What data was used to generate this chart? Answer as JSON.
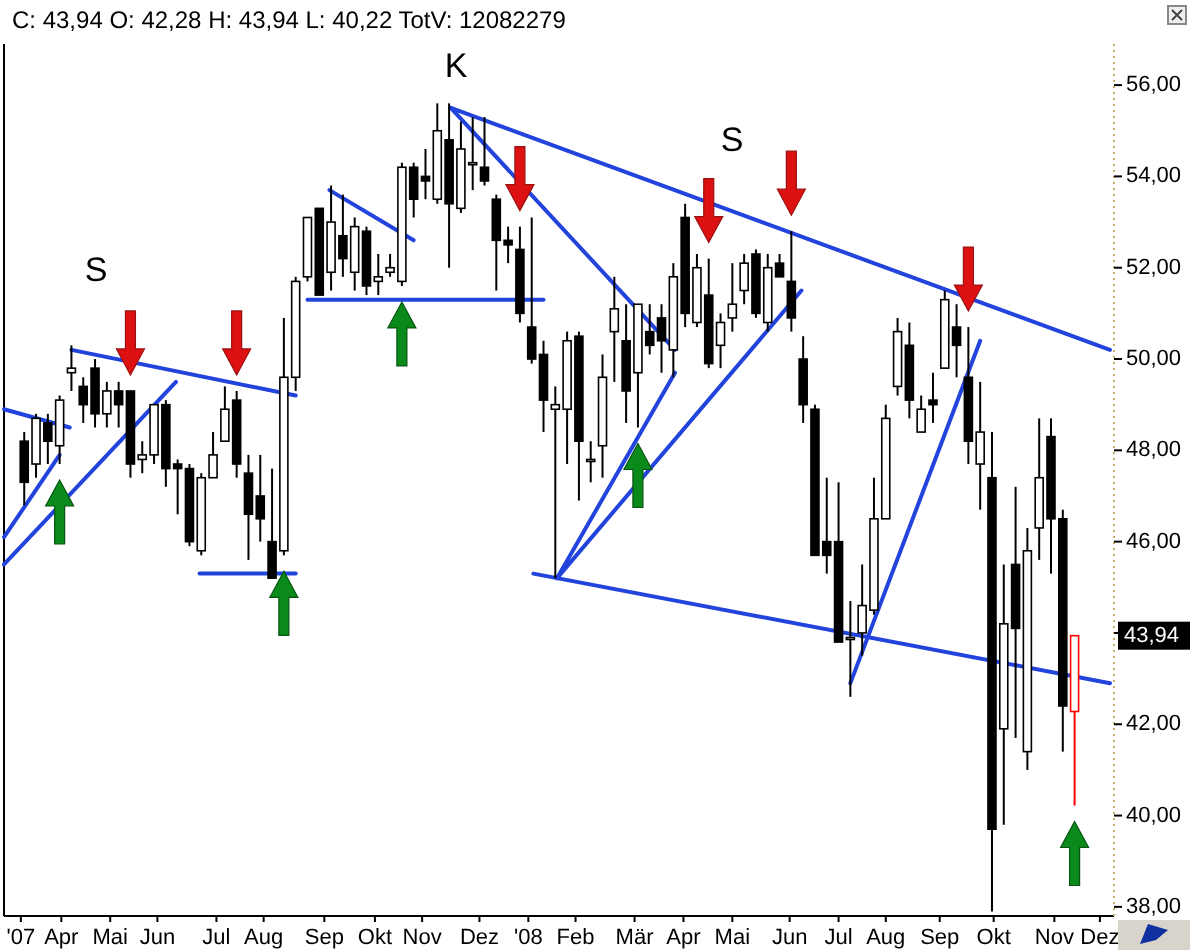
{
  "chart_data": {
    "type": "candlestick",
    "title": "C: 43,94 O: 42,28 H: 43,94 L: 40,22 TotV: 12082279",
    "x": [
      "2007-03-16",
      "2007-03-23",
      "2007-03-30",
      "2007-04-06",
      "2007-04-13",
      "2007-04-20",
      "2007-04-27",
      "2007-05-04",
      "2007-05-11",
      "2007-05-18",
      "2007-05-25",
      "2007-06-01",
      "2007-06-08",
      "2007-06-15",
      "2007-06-22",
      "2007-06-29",
      "2007-07-06",
      "2007-07-13",
      "2007-07-20",
      "2007-07-27",
      "2007-08-03",
      "2007-08-10",
      "2007-08-17",
      "2007-08-24",
      "2007-08-31",
      "2007-09-07",
      "2007-09-14",
      "2007-09-21",
      "2007-09-28",
      "2007-10-05",
      "2007-10-12",
      "2007-10-19",
      "2007-10-26",
      "2007-11-02",
      "2007-11-09",
      "2007-11-16",
      "2007-11-23",
      "2007-11-30",
      "2007-12-07",
      "2007-12-14",
      "2007-12-21",
      "2007-12-28",
      "2008-01-04",
      "2008-01-11",
      "2008-01-18",
      "2008-01-25",
      "2008-02-01",
      "2008-02-08",
      "2008-02-15",
      "2008-02-22",
      "2008-02-29",
      "2008-03-07",
      "2008-03-14",
      "2008-03-21",
      "2008-03-28",
      "2008-04-04",
      "2008-04-11",
      "2008-04-18",
      "2008-04-25",
      "2008-05-02",
      "2008-05-09",
      "2008-05-16",
      "2008-05-23",
      "2008-05-30",
      "2008-06-06",
      "2008-06-13",
      "2008-06-20",
      "2008-06-27",
      "2008-07-04",
      "2008-07-11",
      "2008-07-18",
      "2008-07-25",
      "2008-08-01",
      "2008-08-08",
      "2008-08-15",
      "2008-08-22",
      "2008-08-29",
      "2008-09-05",
      "2008-09-12",
      "2008-09-19",
      "2008-09-26",
      "2008-10-03",
      "2008-10-10",
      "2008-10-17",
      "2008-10-24",
      "2008-10-31",
      "2008-11-07",
      "2008-11-14",
      "2008-11-21",
      "2008-11-28"
    ],
    "ohlc": [
      [
        48.2,
        48.4,
        46.8,
        47.3
      ],
      [
        47.7,
        48.8,
        47.4,
        48.7
      ],
      [
        48.6,
        48.8,
        47.7,
        48.2
      ],
      [
        48.1,
        49.2,
        47.7,
        49.1
      ],
      [
        49.7,
        50.3,
        49.3,
        49.8
      ],
      [
        49.4,
        49.6,
        48.6,
        49.0
      ],
      [
        49.8,
        50.0,
        48.5,
        48.8
      ],
      [
        48.8,
        49.5,
        48.5,
        49.3
      ],
      [
        49.3,
        49.5,
        48.5,
        49.0
      ],
      [
        49.3,
        49.3,
        47.4,
        47.7
      ],
      [
        47.8,
        48.2,
        47.5,
        47.9
      ],
      [
        47.9,
        49.0,
        47.7,
        49.0
      ],
      [
        49.0,
        49.1,
        47.2,
        47.6
      ],
      [
        47.7,
        47.8,
        46.6,
        47.6
      ],
      [
        47.6,
        47.7,
        45.9,
        46.0
      ],
      [
        45.8,
        47.5,
        45.7,
        47.4
      ],
      [
        47.4,
        48.4,
        47.4,
        47.9
      ],
      [
        48.2,
        49.4,
        48.2,
        48.9
      ],
      [
        49.1,
        49.3,
        47.4,
        47.7
      ],
      [
        47.5,
        47.9,
        45.6,
        46.6
      ],
      [
        47.0,
        47.9,
        46.0,
        46.5
      ],
      [
        46.0,
        47.6,
        45.2,
        45.2
      ],
      [
        45.8,
        50.9,
        45.7,
        49.6
      ],
      [
        49.6,
        51.8,
        49.3,
        51.7
      ],
      [
        51.8,
        53.1,
        51.7,
        53.1
      ],
      [
        53.3,
        53.3,
        51.4,
        51.4
      ],
      [
        51.9,
        53.8,
        51.5,
        53.0
      ],
      [
        52.7,
        53.6,
        51.8,
        52.2
      ],
      [
        51.9,
        53.1,
        51.5,
        52.9
      ],
      [
        52.8,
        52.9,
        51.4,
        51.6
      ],
      [
        51.7,
        52.3,
        51.4,
        51.8
      ],
      [
        51.9,
        52.3,
        51.8,
        52.0
      ],
      [
        51.7,
        54.3,
        51.6,
        54.2
      ],
      [
        54.2,
        54.3,
        53.1,
        53.5
      ],
      [
        54.0,
        54.6,
        53.5,
        53.9
      ],
      [
        53.5,
        55.6,
        53.4,
        55.0
      ],
      [
        54.8,
        55.6,
        52.0,
        53.4
      ],
      [
        53.3,
        55.2,
        53.2,
        54.6
      ],
      [
        54.3,
        55.3,
        53.7,
        54.3
      ],
      [
        54.2,
        55.3,
        53.8,
        53.9
      ],
      [
        53.5,
        53.6,
        51.5,
        52.6
      ],
      [
        52.6,
        52.9,
        52.1,
        52.5
      ],
      [
        52.4,
        52.9,
        50.8,
        51.0
      ],
      [
        50.7,
        53.1,
        49.9,
        50.0
      ],
      [
        50.1,
        50.4,
        48.4,
        49.1
      ],
      [
        48.9,
        49.4,
        45.2,
        49.0
      ],
      [
        48.9,
        50.6,
        47.7,
        50.4
      ],
      [
        50.5,
        50.6,
        46.9,
        48.2
      ],
      [
        47.8,
        48.2,
        47.3,
        47.8
      ],
      [
        48.1,
        50.1,
        47.4,
        49.6
      ],
      [
        50.6,
        51.8,
        49.5,
        51.1
      ],
      [
        50.4,
        51.2,
        48.6,
        49.3
      ],
      [
        49.7,
        51.2,
        48.5,
        51.2
      ],
      [
        50.6,
        51.2,
        50.1,
        50.3
      ],
      [
        50.9,
        51.2,
        49.7,
        50.4
      ],
      [
        50.2,
        52.1,
        49.6,
        51.8
      ],
      [
        53.1,
        53.4,
        50.7,
        51.0
      ],
      [
        50.8,
        52.3,
        50.7,
        52.0
      ],
      [
        51.4,
        52.2,
        49.8,
        49.9
      ],
      [
        50.3,
        51.0,
        49.8,
        50.8
      ],
      [
        50.9,
        52.1,
        50.6,
        51.2
      ],
      [
        51.5,
        52.3,
        51.2,
        52.1
      ],
      [
        52.3,
        52.4,
        50.9,
        51.0
      ],
      [
        50.8,
        52.3,
        50.6,
        52.0
      ],
      [
        52.1,
        52.3,
        51.8,
        51.8
      ],
      [
        51.7,
        52.8,
        50.6,
        50.9
      ],
      [
        50.0,
        50.5,
        48.6,
        49.0
      ],
      [
        48.9,
        49.0,
        45.7,
        45.7
      ],
      [
        46.0,
        47.4,
        45.3,
        45.7
      ],
      [
        46.0,
        47.3,
        43.8,
        43.8
      ],
      [
        43.9,
        44.7,
        42.6,
        43.9
      ],
      [
        44.0,
        45.5,
        43.5,
        44.6
      ],
      [
        44.5,
        47.4,
        44.4,
        46.5
      ],
      [
        46.5,
        49.0,
        46.5,
        48.7
      ],
      [
        49.4,
        50.9,
        49.2,
        50.6
      ],
      [
        50.3,
        50.8,
        48.7,
        49.1
      ],
      [
        48.4,
        49.2,
        48.4,
        48.9
      ],
      [
        49.1,
        49.7,
        48.6,
        49.0
      ],
      [
        49.8,
        51.5,
        49.8,
        51.3
      ],
      [
        50.7,
        51.2,
        49.6,
        50.3
      ],
      [
        49.6,
        50.7,
        47.7,
        48.2
      ],
      [
        47.7,
        49.5,
        46.7,
        48.4
      ],
      [
        47.4,
        48.4,
        37.9,
        39.7
      ],
      [
        41.9,
        45.5,
        39.8,
        44.2
      ],
      [
        45.5,
        47.2,
        41.7,
        44.1
      ],
      [
        41.4,
        46.3,
        41.0,
        45.8
      ],
      [
        46.3,
        48.7,
        45.6,
        47.4
      ],
      [
        48.3,
        48.7,
        45.3,
        46.5
      ],
      [
        46.5,
        46.7,
        41.4,
        42.4
      ],
      [
        42.28,
        43.94,
        40.22,
        43.94
      ]
    ],
    "colors": [
      "#000000",
      "#000000",
      "#000000",
      "#000000",
      "#000000",
      "#000000",
      "#000000",
      "#000000",
      "#000000",
      "#000000",
      "#000000",
      "#000000",
      "#000000",
      "#000000",
      "#000000",
      "#000000",
      "#000000",
      "#000000",
      "#000000",
      "#000000",
      "#000000",
      "#000000",
      "#000000",
      "#000000",
      "#000000",
      "#000000",
      "#000000",
      "#000000",
      "#000000",
      "#000000",
      "#000000",
      "#000000",
      "#000000",
      "#000000",
      "#000000",
      "#000000",
      "#000000",
      "#000000",
      "#000000",
      "#000000",
      "#000000",
      "#000000",
      "#000000",
      "#000000",
      "#000000",
      "#000000",
      "#000000",
      "#000000",
      "#000000",
      "#000000",
      "#000000",
      "#000000",
      "#000000",
      "#000000",
      "#000000",
      "#000000",
      "#000000",
      "#000000",
      "#000000",
      "#000000",
      "#000000",
      "#000000",
      "#000000",
      "#000000",
      "#000000",
      "#000000",
      "#000000",
      "#000000",
      "#000000",
      "#000000",
      "#000000",
      "#000000",
      "#000000",
      "#000000",
      "#000000",
      "#000000",
      "#000000",
      "#000000",
      "#000000",
      "#000000",
      "#000000",
      "#000000",
      "#000000",
      "#000000",
      "#000000",
      "#000000",
      "#000000",
      "#000000",
      "#000000",
      "#ff0000"
    ],
    "series": [
      {
        "type": "line",
        "color": "#2244dd",
        "x": [
          "2007-03-04",
          "2007-04-12"
        ],
        "values": [
          48.9,
          48.5
        ]
      },
      {
        "type": "line",
        "color": "#2244dd",
        "x": [
          "2007-03-04",
          "2007-04-06"
        ],
        "values": [
          46.1,
          47.9
        ]
      },
      {
        "type": "line",
        "color": "#2244dd",
        "x": [
          "2007-03-04",
          "2007-06-14"
        ],
        "values": [
          45.5,
          49.5
        ]
      },
      {
        "type": "line",
        "color": "#2244dd",
        "x": [
          "2007-04-13",
          "2007-08-24"
        ],
        "values": [
          50.2,
          49.2
        ]
      },
      {
        "type": "line",
        "color": "#2244dd",
        "x": [
          "2007-06-28",
          "2007-08-24"
        ],
        "values": [
          45.3,
          45.3
        ]
      },
      {
        "type": "line",
        "color": "#2244dd",
        "x": [
          "2007-08-31",
          "2008-01-18"
        ],
        "values": [
          51.3,
          51.3
        ]
      },
      {
        "type": "line",
        "color": "#2244dd",
        "x": [
          "2007-09-13",
          "2007-11-02"
        ],
        "values": [
          53.7,
          52.6
        ]
      },
      {
        "type": "line",
        "color": "#2244dd",
        "x": [
          "2007-11-24",
          "2008-12-19"
        ],
        "values": [
          55.5,
          50.2
        ]
      },
      {
        "type": "line",
        "color": "#2244dd",
        "x": [
          "2007-11-24",
          "2008-04-05"
        ],
        "values": [
          55.5,
          50.2
        ]
      },
      {
        "type": "line",
        "color": "#2244dd",
        "x": [
          "2008-01-12",
          "2008-12-19"
        ],
        "values": [
          45.3,
          42.9
        ]
      },
      {
        "type": "line",
        "color": "#2244dd",
        "x": [
          "2008-01-26",
          "2008-04-05"
        ],
        "values": [
          45.2,
          49.7
        ]
      },
      {
        "type": "line",
        "color": "#2244dd",
        "x": [
          "2008-01-26",
          "2008-06-19"
        ],
        "values": [
          45.2,
          51.5
        ]
      },
      {
        "type": "line",
        "color": "#2244dd",
        "x": [
          "2008-07-18",
          "2008-10-03"
        ],
        "values": [
          42.9,
          50.4
        ]
      }
    ],
    "xlim": [
      "2007-03-04",
      "2008-12-19"
    ],
    "xticks": [
      {
        "value": "2007-03-14",
        "label": "'07"
      },
      {
        "value": "2007-04-07",
        "label": "Apr"
      },
      {
        "value": "2007-05-06",
        "label": "Mai"
      },
      {
        "value": "2007-06-03",
        "label": "Jun"
      },
      {
        "value": "2007-07-08",
        "label": "Jul"
      },
      {
        "value": "2007-08-05",
        "label": "Aug"
      },
      {
        "value": "2007-09-10",
        "label": "Sep"
      },
      {
        "value": "2007-10-10",
        "label": "Okt"
      },
      {
        "value": "2007-11-07",
        "label": "Nov"
      },
      {
        "value": "2007-12-11",
        "label": "Dez"
      },
      {
        "value": "2008-01-09",
        "label": "'08"
      },
      {
        "value": "2008-02-06",
        "label": "Feb"
      },
      {
        "value": "2008-03-12",
        "label": "Mär"
      },
      {
        "value": "2008-04-10",
        "label": "Apr"
      },
      {
        "value": "2008-05-09",
        "label": "Mai"
      },
      {
        "value": "2008-06-12",
        "label": "Jun"
      },
      {
        "value": "2008-07-11",
        "label": "Jul"
      },
      {
        "value": "2008-08-08",
        "label": "Aug"
      },
      {
        "value": "2008-09-09",
        "label": "Sep"
      },
      {
        "value": "2008-10-11",
        "label": "Okt"
      },
      {
        "value": "2008-11-16",
        "label": "Nov"
      },
      {
        "value": "2008-12-13",
        "label": "Dez"
      }
    ],
    "ylim": [
      37.8,
      56.9
    ],
    "yticks": [
      {
        "value": 38,
        "label": "38,00"
      },
      {
        "value": 40,
        "label": "40,00"
      },
      {
        "value": 42,
        "label": "42,00"
      },
      {
        "value": 44,
        "label": null
      },
      {
        "value": 46,
        "label": "46,00"
      },
      {
        "value": 48,
        "label": "48,00"
      },
      {
        "value": 50,
        "label": "50,00"
      },
      {
        "value": 52,
        "label": "52,00"
      },
      {
        "value": 54,
        "label": "54,00"
      },
      {
        "value": 56,
        "label": "56,00"
      }
    ],
    "annotations": [
      "S",
      "K",
      "S",
      {
        "text": "43,94",
        "y": 43.94
      }
    ]
  }
}
